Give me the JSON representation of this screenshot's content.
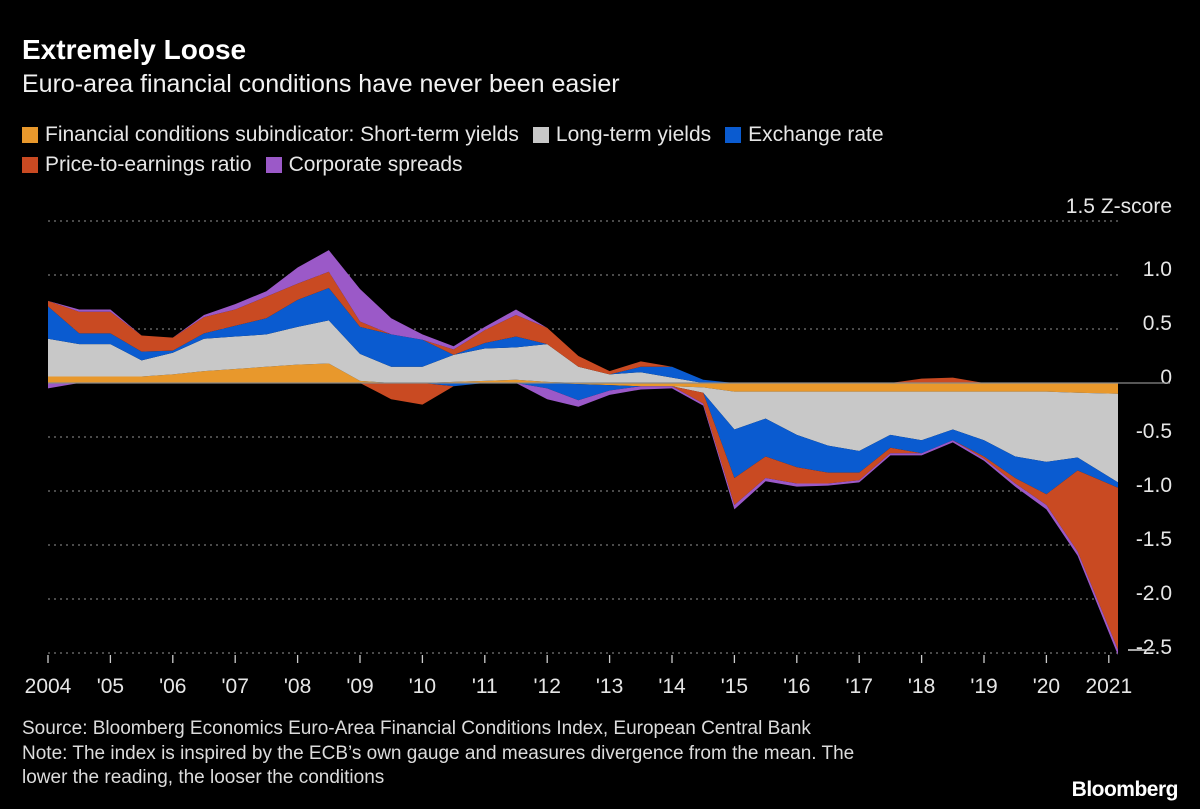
{
  "title": "Extremely Loose",
  "subtitle": "Euro-area financial conditions have never been easier",
  "legend": [
    {
      "label": "Financial conditions subindicator: Short-term yields",
      "color": "#E8982C"
    },
    {
      "label": "Long-term yields",
      "color": "#C8C8C8"
    },
    {
      "label": "Exchange rate",
      "color": "#0A5BD0"
    },
    {
      "label": "Price-to-earnings ratio",
      "color": "#C94A22"
    },
    {
      "label": "Corporate spreads",
      "color": "#9B59C8"
    }
  ],
  "notes": {
    "source": "Source: Bloomberg Economics Euro-Area Financial Conditions Index, European Central Bank",
    "note_line1": "Note: The index is inspired by the ECB’s own gauge and measures divergence from the mean. The",
    "note_line2": "lower the reading, the looser the conditions"
  },
  "logo": "Bloomberg",
  "chart_data": {
    "type": "area",
    "stacked": true,
    "title": "Extremely Loose",
    "ylabel": "Z-score",
    "unit_label": "Z-score",
    "ylim": [
      -2.5,
      1.5
    ],
    "xlim": [
      2004,
      2021.15
    ],
    "yticks": [
      1.5,
      1.0,
      0.5,
      0,
      -0.5,
      -1.0,
      -1.5,
      -2.0,
      -2.5
    ],
    "ytick_labels": [
      "1.5",
      "1.0",
      "0.5",
      "0",
      "-0.5",
      "-1.0",
      "-1.5",
      "-2.0",
      "-2.5"
    ],
    "xticks": [
      2004,
      2005,
      2006,
      2007,
      2008,
      2009,
      2010,
      2011,
      2012,
      2013,
      2014,
      2015,
      2016,
      2017,
      2018,
      2019,
      2020,
      2021
    ],
    "xtick_labels": [
      "2004",
      "'05",
      "'06",
      "'07",
      "'08",
      "'09",
      "'10",
      "'11",
      "'12",
      "'13",
      "'14",
      "'15",
      "'16",
      "'17",
      "'18",
      "'19",
      "'20",
      "2021"
    ],
    "grid": true,
    "legend_position": "top-left",
    "x": [
      2004,
      2004.5,
      2005,
      2005.5,
      2006,
      2006.5,
      2007,
      2007.5,
      2008,
      2008.5,
      2009,
      2009.5,
      2010,
      2010.5,
      2011,
      2011.5,
      2012,
      2012.5,
      2013,
      2013.5,
      2014,
      2014.5,
      2015,
      2015.5,
      2016,
      2016.5,
      2017,
      2017.5,
      2018,
      2018.5,
      2019,
      2019.5,
      2020,
      2020.5,
      2021
    ],
    "series": [
      {
        "name": "Short-term yields",
        "color": "#E8982C",
        "values": [
          0.06,
          0.06,
          0.06,
          0.06,
          0.08,
          0.11,
          0.13,
          0.15,
          0.17,
          0.18,
          0.02,
          0,
          0,
          0.01,
          0.02,
          0.03,
          0.01,
          -0.01,
          -0.02,
          -0.03,
          -0.03,
          -0.04,
          -0.08,
          -0.08,
          -0.08,
          -0.08,
          -0.08,
          -0.08,
          -0.08,
          -0.08,
          -0.08,
          -0.08,
          -0.08,
          -0.09,
          -0.1
        ]
      },
      {
        "name": "Long-term yields",
        "color": "#C8C8C8",
        "values": [
          0.35,
          0.3,
          0.3,
          0.15,
          0.2,
          0.3,
          0.3,
          0.3,
          0.35,
          0.4,
          0.25,
          0.15,
          0.15,
          0.25,
          0.3,
          0.3,
          0.35,
          0.15,
          0.08,
          0.1,
          0.05,
          -0.05,
          -0.35,
          -0.25,
          -0.4,
          -0.5,
          -0.55,
          -0.4,
          -0.45,
          -0.35,
          -0.45,
          -0.6,
          -0.65,
          -0.6,
          -0.82
        ]
      },
      {
        "name": "Exchange rate",
        "color": "#0A5BD0",
        "values": [
          0.3,
          0.1,
          0.1,
          0.08,
          0.02,
          0.05,
          0.1,
          0.15,
          0.25,
          0.3,
          0.25,
          0.3,
          0.25,
          -0.03,
          0.05,
          0.1,
          -0.05,
          -0.15,
          -0.05,
          0.05,
          0.1,
          0.03,
          -0.45,
          -0.35,
          -0.3,
          -0.25,
          -0.2,
          -0.12,
          -0.12,
          -0.1,
          -0.15,
          -0.2,
          -0.3,
          -0.12,
          -0.05
        ]
      },
      {
        "name": "Price-to-earnings ratio",
        "color": "#C94A22",
        "values": [
          0.05,
          0.2,
          0.2,
          0.15,
          0.12,
          0.15,
          0.15,
          0.2,
          0.15,
          0.15,
          0.05,
          -0.15,
          -0.2,
          0.05,
          0.12,
          0.2,
          0.15,
          0.1,
          0.03,
          0.05,
          0,
          -0.1,
          -0.25,
          -0.2,
          -0.15,
          -0.1,
          -0.07,
          -0.05,
          0.04,
          0.05,
          -0.02,
          -0.05,
          -0.1,
          -0.75,
          -1.5
        ]
      },
      {
        "name": "Corporate spreads",
        "color": "#9B59C8",
        "values": [
          -0.05,
          0.02,
          0.02,
          0,
          0,
          0.02,
          0.05,
          0.05,
          0.15,
          0.2,
          0.3,
          0.15,
          0.05,
          0.03,
          0.03,
          0.05,
          -0.1,
          -0.06,
          -0.04,
          -0.03,
          -0.02,
          -0.02,
          -0.04,
          -0.03,
          -0.03,
          -0.02,
          -0.02,
          -0.02,
          -0.02,
          -0.02,
          -0.02,
          -0.03,
          -0.04,
          -0.04,
          -0.05
        ]
      }
    ]
  }
}
